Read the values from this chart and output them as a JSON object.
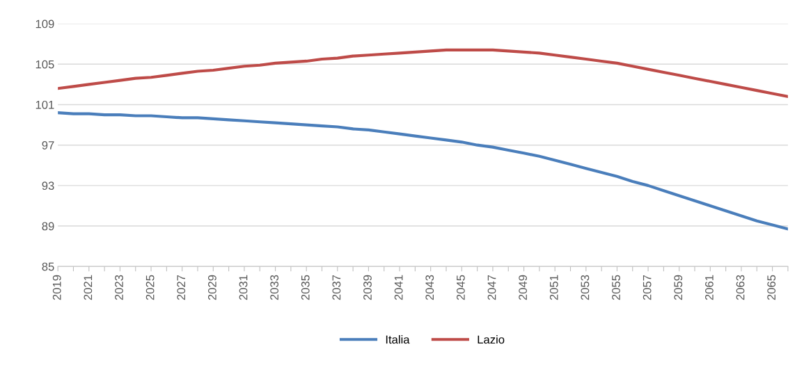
{
  "chart_data": {
    "type": "line",
    "categories": [
      "2019",
      null,
      "2021",
      null,
      "2023",
      null,
      "2025",
      null,
      "2027",
      null,
      "2029",
      null,
      "2031",
      null,
      "2033",
      null,
      "2035",
      null,
      "2037",
      null,
      "2039",
      null,
      "2041",
      null,
      "2043",
      null,
      "2045",
      null,
      "2047",
      null,
      "2049",
      null,
      "2051",
      null,
      "2053",
      null,
      "2055",
      null,
      "2057",
      null,
      "2059",
      null,
      "2061",
      null,
      "2063",
      null,
      "2065",
      null
    ],
    "series": [
      {
        "name": "Italia",
        "color": "#4a7ebb",
        "values": [
          100.2,
          100.1,
          100.1,
          100.0,
          100.0,
          99.9,
          99.9,
          99.8,
          99.7,
          99.7,
          99.6,
          99.5,
          99.4,
          99.3,
          99.2,
          99.1,
          99.0,
          98.9,
          98.8,
          98.6,
          98.5,
          98.3,
          98.1,
          97.9,
          97.7,
          97.5,
          97.3,
          97.0,
          96.8,
          96.5,
          96.2,
          95.9,
          95.5,
          95.1,
          94.7,
          94.3,
          93.9,
          93.4,
          93.0,
          92.5,
          92.0,
          91.5,
          91.0,
          90.5,
          90.0,
          89.5,
          89.1,
          88.7
        ]
      },
      {
        "name": "Lazio",
        "color": "#be4b48",
        "values": [
          102.6,
          102.8,
          103.0,
          103.2,
          103.4,
          103.6,
          103.7,
          103.9,
          104.1,
          104.3,
          104.4,
          104.6,
          104.8,
          104.9,
          105.1,
          105.2,
          105.3,
          105.5,
          105.6,
          105.8,
          105.9,
          106.0,
          106.1,
          106.2,
          106.3,
          106.4,
          106.4,
          106.4,
          106.4,
          106.3,
          106.2,
          106.1,
          105.9,
          105.7,
          105.5,
          105.3,
          105.1,
          104.8,
          104.5,
          104.2,
          103.9,
          103.6,
          103.3,
          103.0,
          102.7,
          102.4,
          102.1,
          101.8
        ]
      }
    ],
    "ylim": [
      85,
      109
    ],
    "yticks": [
      85,
      89,
      93,
      97,
      101,
      105,
      109
    ],
    "grid": "y",
    "legend": "bottom",
    "marker": "none",
    "line_style": "solid"
  }
}
